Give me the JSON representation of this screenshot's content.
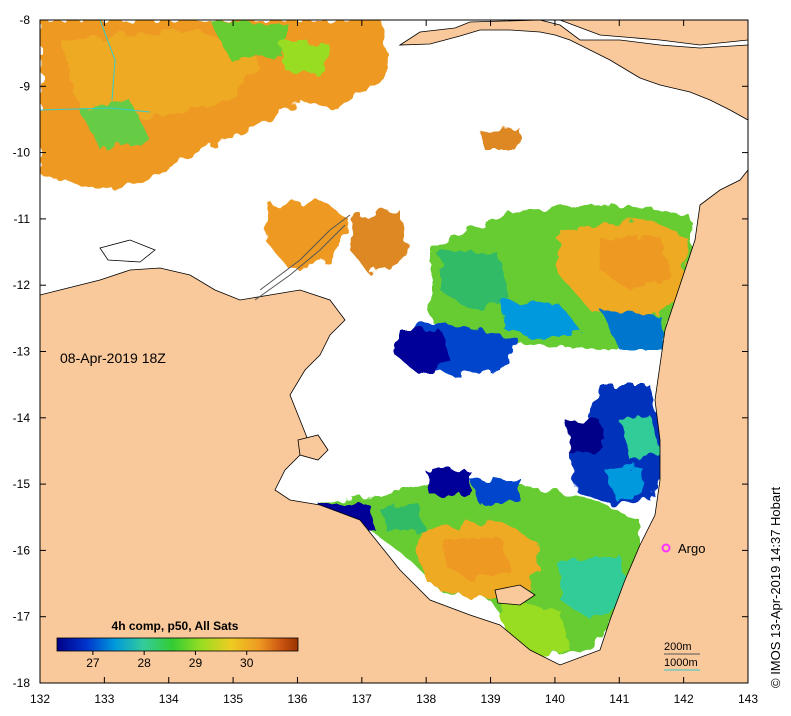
{
  "map": {
    "timestamp": "08-Apr-2019 18Z",
    "credit": "© IMOS 13-Apr-2019 14:37 Hobart",
    "marker_label": "Argo",
    "marker_color": "#ff33ff",
    "land_color": "#f9c89b",
    "cloud_color": "#ffffff",
    "x_ticks": [
      "132",
      "133",
      "134",
      "135",
      "136",
      "137",
      "138",
      "139",
      "140",
      "141",
      "142",
      "143"
    ],
    "y_ticks": [
      "-8",
      "-9",
      "-10",
      "-11",
      "-12",
      "-13",
      "-14",
      "-15",
      "-16",
      "-17",
      "-18"
    ],
    "colorbar": {
      "title": "4h comp, p50, All Sats",
      "ticks": [
        "27",
        "28",
        "29",
        "30"
      ],
      "colors": [
        "#000088",
        "#0033cc",
        "#0099dd",
        "#33cc99",
        "#33cc33",
        "#99dd22",
        "#eecc22",
        "#ee9922",
        "#cc5511",
        "#993300"
      ]
    },
    "contour_legend": {
      "items": [
        {
          "label": "200m",
          "color": "#555555"
        },
        {
          "label": "1000m",
          "color": "#33cccc"
        }
      ]
    }
  }
}
